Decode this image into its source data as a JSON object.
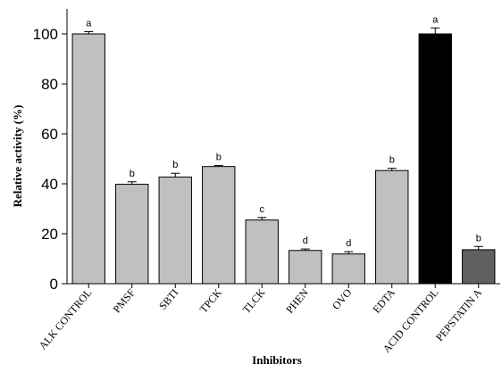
{
  "chart_data": {
    "type": "bar",
    "xlabel": "Inhibitors",
    "ylabel": "Relative activity (%)",
    "ylim": [
      0,
      110
    ],
    "yticks": [
      0,
      20,
      40,
      60,
      80,
      100
    ],
    "grid": false,
    "legend": "none",
    "categories": [
      "ALK CONTROL",
      "PMSF",
      "SBTI",
      "TPCK",
      "TLCK",
      "PHEN",
      "OVO",
      "EDTA",
      "ACID CONTROL",
      "PEPSTATIN A"
    ],
    "values": [
      100,
      39.8,
      42.7,
      46.9,
      25.5,
      13.3,
      11.9,
      45.3,
      100,
      13.6
    ],
    "errors": [
      0.9,
      1.0,
      1.5,
      0.4,
      1.0,
      0.6,
      0.9,
      0.9,
      2.4,
      1.3
    ],
    "significance_letters": [
      "a",
      "b",
      "b",
      "b",
      "c",
      "d",
      "d",
      "b",
      "a",
      "b"
    ],
    "bar_colors": [
      "#c0c0c0",
      "#c0c0c0",
      "#c0c0c0",
      "#c0c0c0",
      "#c0c0c0",
      "#c0c0c0",
      "#c0c0c0",
      "#c0c0c0",
      "#000000",
      "#606060"
    ]
  }
}
